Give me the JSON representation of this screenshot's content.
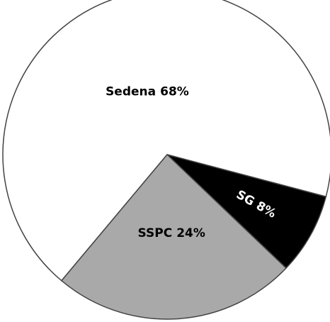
{
  "chart_data": {
    "type": "pie",
    "categories": [
      "Sedena",
      "SG",
      "SSPC"
    ],
    "values": [
      68,
      8,
      24
    ],
    "value_labels": [
      "68%",
      "8%",
      "24%"
    ],
    "colors": [
      "#ffffff",
      "#000000",
      "#a9a9a9"
    ],
    "label_colors": [
      "#000000",
      "#ffffff",
      "#000000"
    ]
  }
}
